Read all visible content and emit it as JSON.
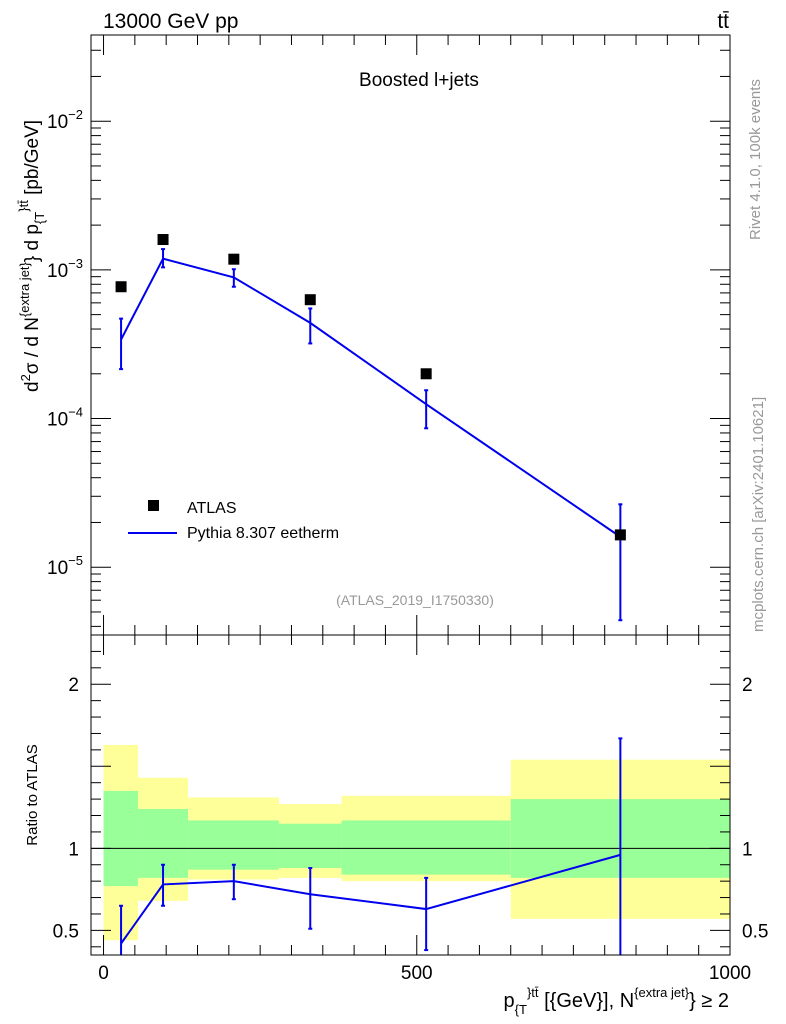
{
  "header": {
    "left": "13000 GeV pp",
    "right": "tt̄"
  },
  "side_text": {
    "rivet": "Rivet 4.1.0,  100k events",
    "site": "mcplots.cern.ch [arXiv:2401.10621]"
  },
  "colors": {
    "mc": "#0000ee",
    "band_inner": "#99ff99",
    "band_outer": "#ffff99",
    "data": "#000000",
    "watermark": "#999999"
  },
  "chart_data": [
    {
      "type": "scatter",
      "title": "Boosted l+jets",
      "watermark": "(ATLAS_2019_I1750330)",
      "ylabel_main": "d²σ / d N^{extra jet} d p_{T}^{tt̄} [pb/GeV]",
      "yscale": "log",
      "ylim": [
        3.5e-06,
        0.038
      ],
      "xlim": [
        -20,
        1000
      ],
      "y_ticks": [
        {
          "value": 1e-05,
          "base": "10",
          "exp": "−5"
        },
        {
          "value": 0.0001,
          "base": "10",
          "exp": "−4"
        },
        {
          "value": 0.001,
          "base": "10",
          "exp": "−3"
        },
        {
          "value": 0.01,
          "base": "10",
          "exp": "−2"
        }
      ],
      "legend": {
        "position": "bottom-left",
        "data_label": "ATLAS",
        "mc_label": "Pythia 8.307 eetherm"
      },
      "series": [
        {
          "name": "ATLAS",
          "x": [
            28,
            95,
            208,
            330,
            515,
            825
          ],
          "values": [
            0.00077,
            0.0016,
            0.00118,
            0.00063,
            0.0002,
            1.65e-05
          ]
        },
        {
          "name": "Pythia 8.307 eetherm",
          "x": [
            28,
            95,
            208,
            330,
            515,
            825
          ],
          "values": [
            0.00034,
            0.00119,
            0.00089,
            0.00044,
            0.000125,
            1.6e-05
          ],
          "err_lo": [
            0.000215,
            0.00104,
            0.00077,
            0.00032,
            8.6e-05,
            4.4e-06
          ],
          "err_hi": [
            0.00047,
            0.00138,
            0.00101,
            0.00055,
            0.000155,
            2.65e-05
          ]
        }
      ]
    },
    {
      "type": "line",
      "ylabel": "Ratio to ATLAS",
      "xlabel": "p_{T}^{tt̄} [{GeV}], N^{extra jet} ≥ 2",
      "xlim": [
        -20,
        1000
      ],
      "ylim": [
        0.35,
        2.3
      ],
      "x_ticks": [
        {
          "value": 0,
          "label": "0"
        },
        {
          "value": 500,
          "label": "500"
        },
        {
          "value": 1000,
          "label": "1000"
        }
      ],
      "y_ticks": [
        {
          "value": 0.5,
          "label": "0.5"
        },
        {
          "value": 1,
          "label": "1"
        },
        {
          "value": 2,
          "label": "2"
        }
      ],
      "bands": [
        {
          "x0": 0,
          "x1": 55,
          "inner": [
            0.77,
            1.35
          ],
          "outer": [
            0.44,
            1.63
          ]
        },
        {
          "x0": 55,
          "x1": 135,
          "inner": [
            0.82,
            1.24
          ],
          "outer": [
            0.68,
            1.43
          ]
        },
        {
          "x0": 135,
          "x1": 280,
          "inner": [
            0.87,
            1.17
          ],
          "outer": [
            0.81,
            1.31
          ]
        },
        {
          "x0": 280,
          "x1": 380,
          "inner": [
            0.88,
            1.15
          ],
          "outer": [
            0.82,
            1.27
          ]
        },
        {
          "x0": 380,
          "x1": 650,
          "inner": [
            0.84,
            1.17
          ],
          "outer": [
            0.8,
            1.32
          ]
        },
        {
          "x0": 650,
          "x1": 1000,
          "inner": [
            0.82,
            1.3
          ],
          "outer": [
            0.57,
            1.54
          ]
        }
      ],
      "series": [
        {
          "name": "Pythia 8.307 eetherm / ATLAS",
          "x": [
            28,
            95,
            208,
            330,
            515,
            825
          ],
          "values": [
            0.42,
            0.78,
            0.8,
            0.72,
            0.63,
            0.96
          ],
          "err_lo": [
            0.3,
            0.65,
            0.69,
            0.51,
            0.38,
            0.3
          ],
          "err_hi": [
            0.65,
            0.9,
            0.9,
            0.88,
            0.82,
            1.67
          ]
        }
      ]
    }
  ]
}
